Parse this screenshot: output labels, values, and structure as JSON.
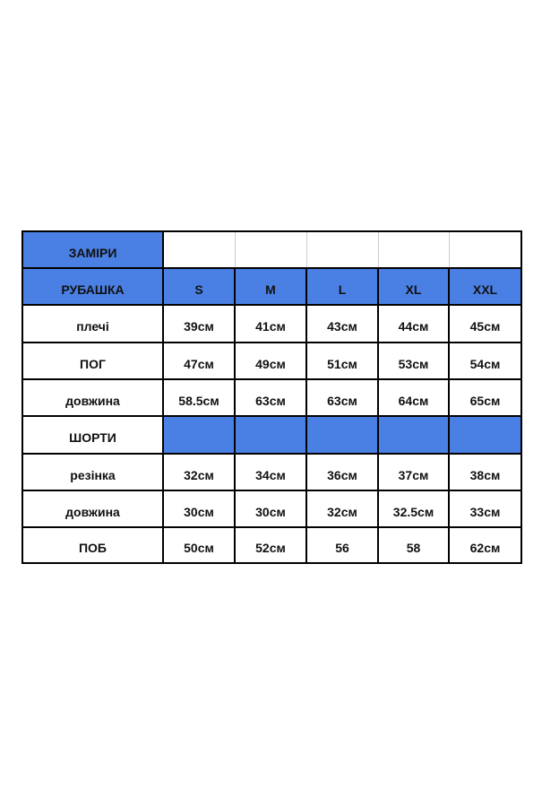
{
  "title": "ЗАМІРИ",
  "colors": {
    "header_blue": "#4a80e3",
    "border": "#000000"
  },
  "shirt": {
    "label": "РУБАШКА",
    "sizes": [
      "S",
      "M",
      "L",
      "XL",
      "XXL"
    ],
    "rows": [
      {
        "label": "плечі",
        "values": [
          "39см",
          "41см",
          "43см",
          "44см",
          "45см"
        ]
      },
      {
        "label": "ПОГ",
        "values": [
          "47см",
          "49см",
          "51см",
          "53см",
          "54см"
        ]
      },
      {
        "label": "довжина",
        "values": [
          "58.5см",
          "63см",
          "63см",
          "64см",
          "65см"
        ]
      }
    ]
  },
  "shorts": {
    "label": "ШОРТИ",
    "rows": [
      {
        "label": "резінка",
        "values": [
          "32см",
          "34см",
          "36см",
          "37см",
          "38см"
        ]
      },
      {
        "label": "довжина",
        "values": [
          "30см",
          "30см",
          "32см",
          "32.5см",
          "33см"
        ]
      },
      {
        "label": "ПОБ",
        "values": [
          "50см",
          "52см",
          "56",
          "58",
          "62см"
        ]
      }
    ]
  }
}
